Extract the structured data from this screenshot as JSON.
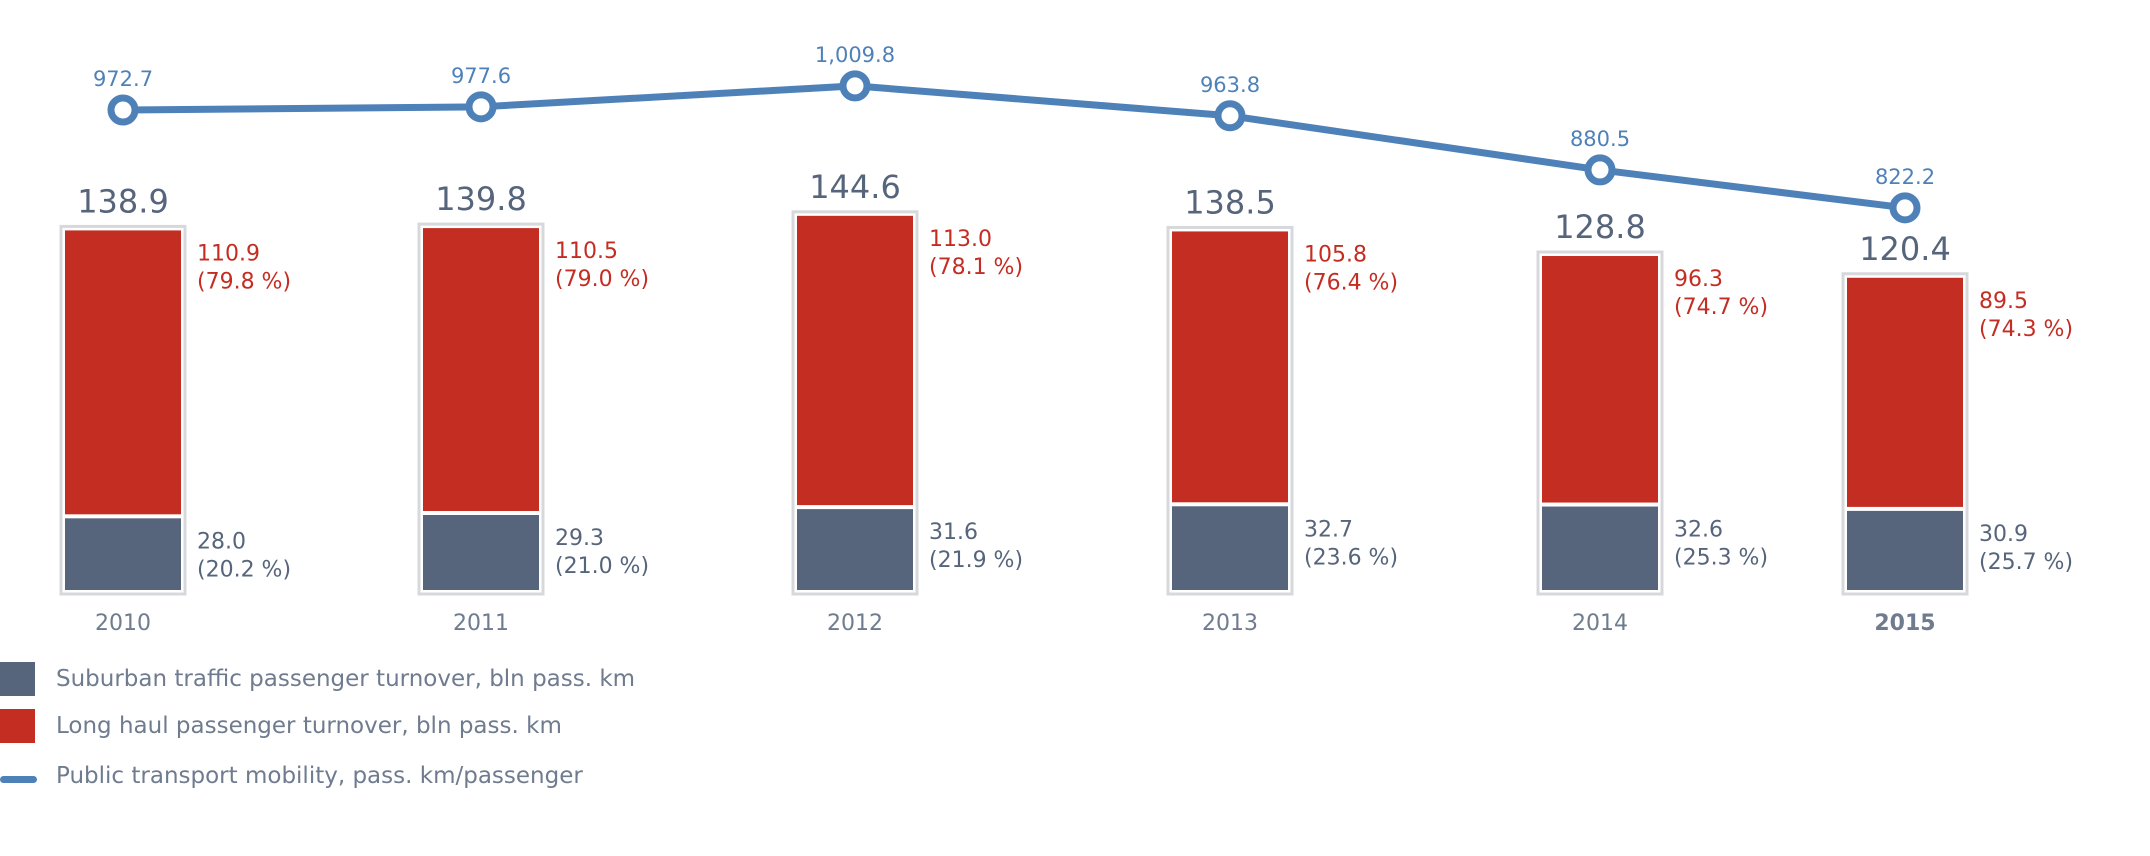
{
  "colors": {
    "suburban": "#56657b",
    "long_haul": "#c42d22",
    "mobility": "#4f81b9",
    "frame": "#d6d8dc",
    "axis_text": "#6f7b8e",
    "total_text": "#56657b"
  },
  "chart_data": {
    "type": "bar",
    "stacked": true,
    "categories": [
      "2010",
      "2011",
      "2012",
      "2013",
      "2014",
      "2015"
    ],
    "highlight_category": "2015",
    "totals": [
      {
        "value": 138.9,
        "label": "138.9"
      },
      {
        "value": 139.8,
        "label": "139.8"
      },
      {
        "value": 144.6,
        "label": "144.6"
      },
      {
        "value": 138.5,
        "label": "138.5"
      },
      {
        "value": 128.8,
        "label": "128.8"
      },
      {
        "value": 120.4,
        "label": "120.4"
      }
    ],
    "series": [
      {
        "name": "Suburban traffic passenger turnover, bln pass. km",
        "key": "suburban",
        "values": [
          28.0,
          29.3,
          31.6,
          32.7,
          32.6,
          30.9
        ],
        "labels": [
          "28.0",
          "29.3",
          "31.6",
          "32.7",
          "32.6",
          "30.9"
        ],
        "shares": [
          "(20.2 %)",
          "(21.0 %)",
          "(21.9 %)",
          "(23.6 %)",
          "(25.3 %)",
          "(25.7 %)"
        ]
      },
      {
        "name": "Long haul passenger turnover, bln pass. km",
        "key": "long_haul",
        "values": [
          110.9,
          110.5,
          113.0,
          105.8,
          96.3,
          89.5
        ],
        "labels": [
          "110.9",
          "110.5",
          "113.0",
          "105.8",
          "96.3",
          "89.5"
        ],
        "shares": [
          "(79.8 %)",
          "(79.0 %)",
          "(78.1 %)",
          "(76.4 %)",
          "(74.7 %)",
          "(74.3 %)"
        ]
      }
    ],
    "line_series": {
      "name": "Public transport mobility, pass. km/passenger",
      "key": "mobility",
      "values": [
        972.7,
        977.6,
        1009.8,
        963.8,
        880.5,
        822.2
      ],
      "labels": [
        "972.7",
        "977.6",
        "1,009.8",
        "963.8",
        "880.5",
        "822.2"
      ]
    }
  },
  "legend": {
    "suburban_label": "Suburban traffic passenger turnover, bln pass. km",
    "long_haul_label": "Long haul passenger turnover, bln pass. km",
    "mobility_label": "Public transport mobility, pass. km/passenger"
  }
}
